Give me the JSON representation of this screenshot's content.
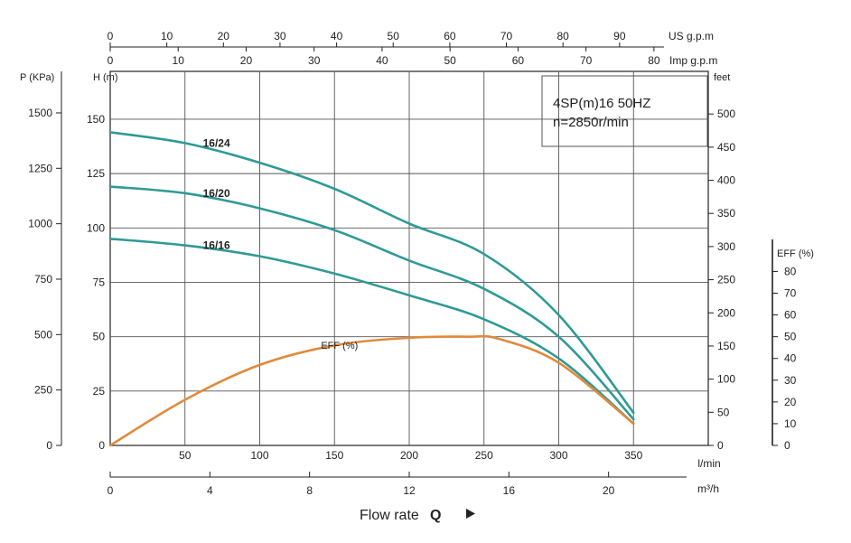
{
  "chart_data": {
    "type": "line",
    "info": {
      "model": "4SP(m)16  50HZ",
      "speed": "n=2850r/min"
    },
    "x_axis": {
      "label": "l/min",
      "range": [
        0,
        400
      ],
      "ticks": [
        0,
        50,
        100,
        150,
        200,
        250,
        300,
        350
      ]
    },
    "x_axis_m3h": {
      "label": "m³/h",
      "ticks": [
        0,
        4,
        8,
        12,
        16,
        20
      ]
    },
    "x_axis_us_gpm": {
      "label": "US g.p.m",
      "ticks": [
        0,
        10,
        20,
        30,
        40,
        50,
        60,
        70,
        80,
        90
      ]
    },
    "x_axis_imp_gpm": {
      "label": "Imp g.p.m",
      "ticks": [
        0,
        10,
        20,
        30,
        40,
        50,
        60,
        70,
        80
      ]
    },
    "y_axis_head_m": {
      "label": "H (m)",
      "range": [
        0,
        150
      ],
      "ticks": [
        0,
        25,
        50,
        75,
        100,
        125,
        150
      ]
    },
    "y_axis_pressure_kpa": {
      "label": "P (KPa)",
      "ticks": [
        0,
        250,
        500,
        750,
        1000,
        1250,
        1500
      ]
    },
    "y_axis_feet": {
      "label": "feet",
      "ticks": [
        0,
        50,
        100,
        150,
        200,
        250,
        300,
        350,
        400,
        450,
        500
      ]
    },
    "y_axis_eff": {
      "label": "EFF (%)",
      "ticks": [
        0,
        10,
        20,
        30,
        40,
        50,
        60,
        70,
        80
      ]
    },
    "flow_title": {
      "text": "Flow rate",
      "symbol": "Q"
    },
    "series": [
      {
        "name": "16/24",
        "color": "#2e9a96",
        "x": [
          0,
          50,
          100,
          150,
          200,
          250,
          300,
          350
        ],
        "y": [
          144,
          139,
          130,
          118,
          102,
          88,
          60,
          15
        ]
      },
      {
        "name": "16/20",
        "color": "#2e9a96",
        "x": [
          0,
          50,
          100,
          150,
          200,
          250,
          300,
          350
        ],
        "y": [
          119,
          116,
          109,
          99,
          85,
          72,
          50,
          12
        ]
      },
      {
        "name": "16/16",
        "color": "#2e9a96",
        "x": [
          0,
          50,
          100,
          150,
          200,
          250,
          300,
          350
        ],
        "y": [
          95,
          92,
          87,
          79,
          69,
          58,
          40,
          10
        ]
      },
      {
        "name": "EFF (%)",
        "color": "#e08a3c",
        "x": [
          0,
          50,
          100,
          150,
          200,
          240,
          260,
          300,
          350
        ],
        "y": [
          0,
          21,
          37,
          46,
          49.5,
          50,
          49,
          38,
          10
        ]
      }
    ]
  }
}
